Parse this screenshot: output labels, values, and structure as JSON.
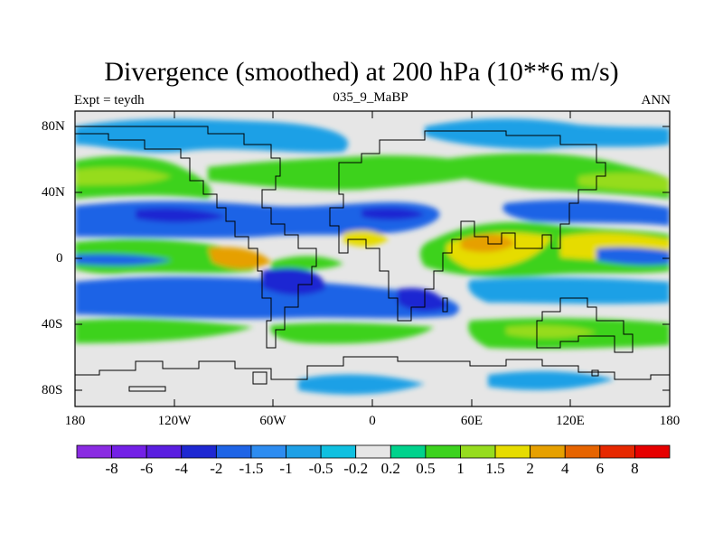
{
  "title": "Divergence (smoothed) at 200 hPa (10**6 m/s)",
  "left_label": "Expt = teydh",
  "center_label": "035_9_MaBP",
  "right_label": "ANN",
  "lat_labels": [
    "80N",
    "40N",
    "0",
    "40S",
    "80S"
  ],
  "lon_labels": [
    "180",
    "120W",
    "60W",
    "0",
    "60E",
    "120E",
    "180"
  ],
  "colorbar": {
    "labels": [
      "-8",
      "-6",
      "-4",
      "-2",
      "-1.5",
      "-1",
      "-0.5",
      "-0.2",
      "0.2",
      "0.5",
      "1",
      "1.5",
      "2",
      "4",
      "6",
      "8"
    ],
    "colors": [
      "#8a2be2",
      "#7320e6",
      "#5a1ee0",
      "#1e28d2",
      "#1e64e6",
      "#2d8cf0",
      "#1ea0e6",
      "#10c0e0",
      "#e6e6e6",
      "#00d28c",
      "#3cd21e",
      "#96dc1e",
      "#e6dc00",
      "#e6a000",
      "#e66400",
      "#e62800",
      "#e60000"
    ]
  },
  "colors": {
    "land_outline": "#000000",
    "background": "#e6e6e6"
  }
}
